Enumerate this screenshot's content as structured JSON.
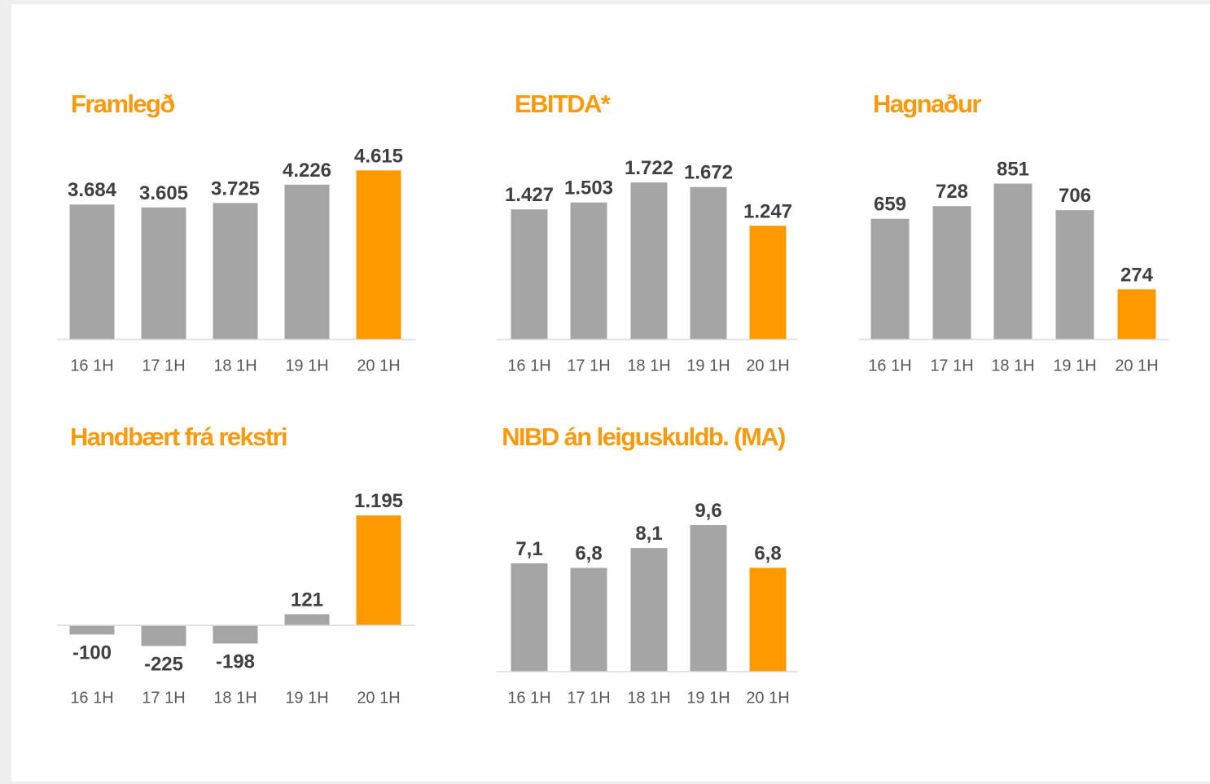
{
  "chart_data": [
    {
      "type": "bar",
      "title": "Framlegð",
      "categories": [
        "16 1H",
        "17 1H",
        "18 1H",
        "19 1H",
        "20 1H"
      ],
      "values": [
        3684,
        3605,
        3725,
        4226,
        4615
      ],
      "value_labels": [
        "3.684",
        "3.605",
        "3.725",
        "4.226",
        "4.615"
      ],
      "colors": [
        "#a5a5a5",
        "#a5a5a5",
        "#a5a5a5",
        "#a5a5a5",
        "#ff9900"
      ],
      "ylim": [
        0,
        5000
      ]
    },
    {
      "type": "bar",
      "title": "EBITDA*",
      "categories": [
        "16 1H",
        "17 1H",
        "18 1H",
        "19 1H",
        "20 1H"
      ],
      "values": [
        1427,
        1503,
        1722,
        1672,
        1247
      ],
      "value_labels": [
        "1.427",
        "1.503",
        "1.722",
        "1.672",
        "1.247"
      ],
      "colors": [
        "#a5a5a5",
        "#a5a5a5",
        "#a5a5a5",
        "#a5a5a5",
        "#ff9900"
      ],
      "ylim": [
        0,
        2000
      ]
    },
    {
      "type": "bar",
      "title": "Hagnaður",
      "categories": [
        "16 1H",
        "17 1H",
        "18 1H",
        "19 1H",
        "20 1H"
      ],
      "values": [
        659,
        728,
        851,
        706,
        274
      ],
      "colors": [
        "#a5a5a5",
        "#a5a5a5",
        "#a5a5a5",
        "#a5a5a5",
        "#ff9900"
      ],
      "ylim": [
        0,
        1000
      ]
    },
    {
      "type": "bar",
      "title": "Handbært frá rekstri",
      "categories": [
        "16 1H",
        "17 1H",
        "18 1H",
        "19 1H",
        "20 1H"
      ],
      "values": [
        -100,
        -225,
        -198,
        121,
        1195
      ],
      "value_labels": [
        "-100",
        "-225",
        "-198",
        "121",
        "1.195"
      ],
      "colors": [
        "#a5a5a5",
        "#a5a5a5",
        "#a5a5a5",
        "#a5a5a5",
        "#ff9900"
      ],
      "ylim": [
        -300,
        1400
      ]
    },
    {
      "type": "bar",
      "title": "NIBD án leiguskuldb. (MA)",
      "categories": [
        "16 1H",
        "17 1H",
        "18 1H",
        "19 1H",
        "20 1H"
      ],
      "values": [
        7.1,
        6.8,
        8.1,
        9.6,
        6.8
      ],
      "value_labels": [
        "7,1",
        "6,8",
        "8,1",
        "9,6",
        "6,8"
      ],
      "colors": [
        "#a5a5a5",
        "#a5a5a5",
        "#a5a5a5",
        "#a5a5a5",
        "#ff9900"
      ],
      "ylim": [
        0,
        10
      ]
    }
  ]
}
